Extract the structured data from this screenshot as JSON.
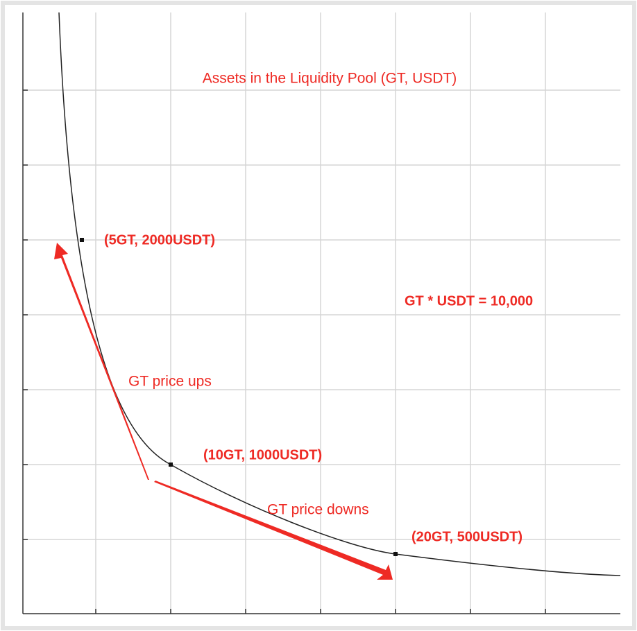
{
  "title": "Assets in the Liquidity Pool (GT, USDT)",
  "equation": "GT * USDT = 10,000",
  "points": [
    {
      "label": "(5GT, 2000USDT)"
    },
    {
      "label": "(10GT, 1000USDT)"
    },
    {
      "label": "(20GT, 500USDT)"
    }
  ],
  "arrows": [
    {
      "label": "GT price ups"
    },
    {
      "label": "GT price downs"
    }
  ]
}
